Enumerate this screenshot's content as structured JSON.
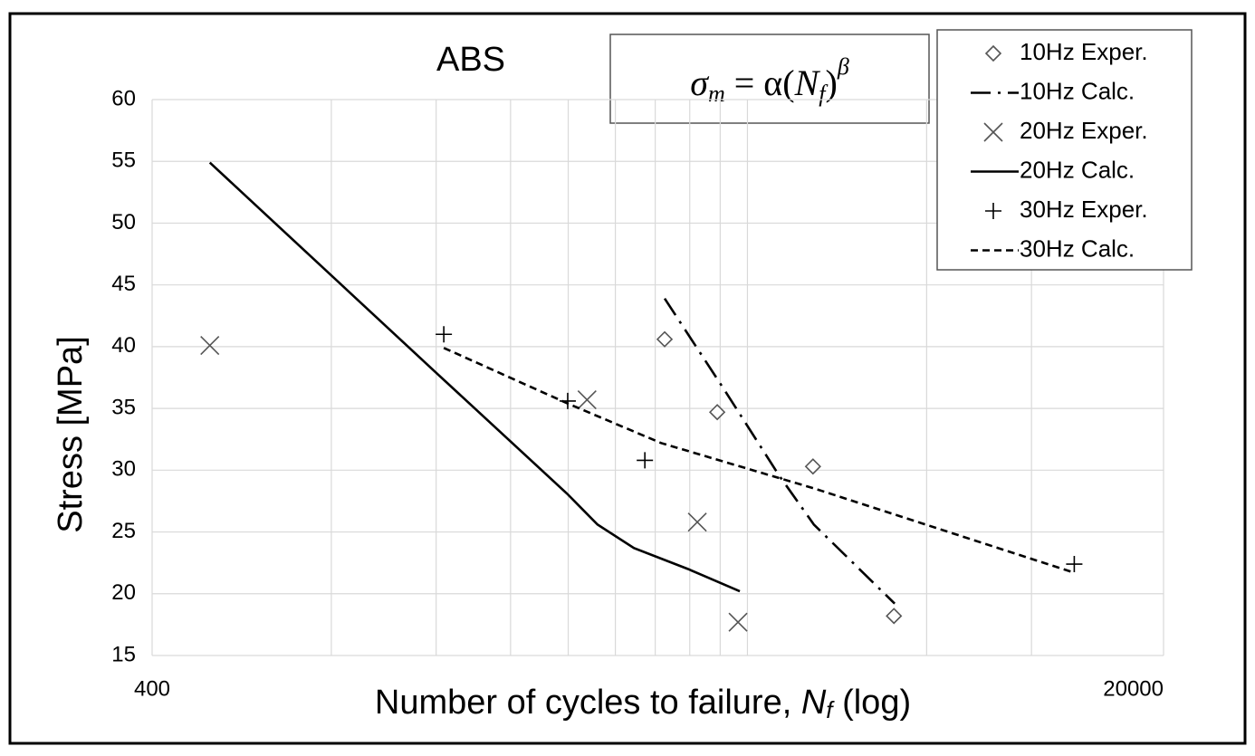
{
  "chart_data": {
    "type": "scatter",
    "title": "ABS",
    "equation": [
      "σ",
      "m",
      " = α(",
      "N",
      "f",
      ")",
      "β"
    ],
    "x_label": [
      "Number of cycles to failure, ",
      "N",
      "f",
      " (log)"
    ],
    "y_label": "Stress [MPa]",
    "xlog": true,
    "xlim": [
      400,
      20000
    ],
    "xticks": [
      400,
      20000
    ],
    "xgrid": [
      800,
      1200,
      1600,
      2000,
      2400,
      2800,
      3200,
      3600,
      4000,
      8000,
      12000
    ],
    "ylim": [
      15,
      60
    ],
    "yticks": [
      15,
      20,
      25,
      30,
      35,
      40,
      45,
      50,
      55,
      60
    ],
    "grid": true,
    "legend": "top-right",
    "series": [
      {
        "name": "10Hz Exper.",
        "color": "#555555",
        "marker": "diamond",
        "x": [
          2904,
          3559,
          5154,
          7049
        ],
        "values": [
          40.6,
          34.7,
          30.3,
          18.2
        ]
      },
      {
        "name": "10Hz Calc.",
        "color": "#000000",
        "dash": "dashdot",
        "x": [
          2904,
          3659,
          4517,
          5172,
          7070
        ],
        "values": [
          43.9,
          36.5,
          29.6,
          25.6,
          19.2
        ]
      },
      {
        "name": "20Hz Exper.",
        "color": "#555555",
        "marker": "x",
        "x": [
          500,
          2151,
          3295,
          3857
        ],
        "values": [
          40.1,
          35.7,
          25.8,
          17.7
        ]
      },
      {
        "name": "20Hz Calc.",
        "color": "#000000",
        "dash": "solid",
        "x": [
          500,
          1193,
          1991,
          2240,
          2579,
          3179,
          3884
        ],
        "values": [
          54.9,
          38.0,
          28.1,
          25.6,
          23.7,
          22.0,
          20.2
        ]
      },
      {
        "name": "30Hz Exper.",
        "color": "#000000",
        "marker": "plus",
        "x": [
          1236,
          1996,
          2690,
          14160
        ],
        "values": [
          41.0,
          35.6,
          30.8,
          22.4
        ]
      },
      {
        "name": "30Hz Calc.",
        "color": "#000000",
        "dash": "dashed",
        "x": [
          1236,
          1996,
          2864,
          5197,
          14160
        ],
        "values": [
          39.9,
          35.4,
          32.2,
          28.5,
          21.7
        ]
      }
    ]
  }
}
